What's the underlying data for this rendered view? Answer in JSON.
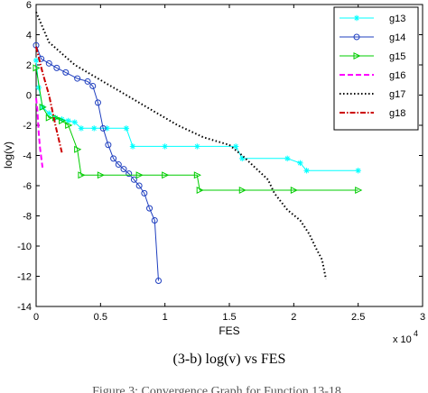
{
  "chart_data": {
    "type": "line",
    "xlabel": "FES",
    "ylabel": "log(v)",
    "xlim": [
      0,
      3
    ],
    "ylim": [
      -14,
      6
    ],
    "x_multiplier": "x 10",
    "x_exponent": "4",
    "xticks": [
      "0",
      "0.5",
      "1",
      "1.5",
      "2",
      "2.5",
      "3"
    ],
    "yticks": [
      "6",
      "4",
      "2",
      "0",
      "-2",
      "-4",
      "-6",
      "-8",
      "-10",
      "-12",
      "-14"
    ],
    "legend_position": "top-right",
    "series": [
      {
        "name": "g13",
        "color": "#00ffff",
        "style": "solid",
        "marker": "star",
        "x": [
          0,
          0.02,
          0.05,
          0.1,
          0.15,
          0.2,
          0.25,
          0.3,
          0.35,
          0.45,
          0.55,
          0.7,
          0.75,
          1.0,
          1.25,
          1.55,
          1.6,
          1.95,
          2.05,
          2.1,
          2.5
        ],
        "y": [
          2.3,
          0.5,
          -0.8,
          -1.2,
          -1.5,
          -1.6,
          -1.7,
          -1.8,
          -2.2,
          -2.2,
          -2.2,
          -2.2,
          -3.4,
          -3.4,
          -3.4,
          -3.4,
          -4.2,
          -4.2,
          -4.5,
          -5.0,
          -5.0
        ]
      },
      {
        "name": "g14",
        "color": "#1f3fbf",
        "style": "solid",
        "marker": "circle",
        "x": [
          0,
          0.04,
          0.1,
          0.16,
          0.23,
          0.32,
          0.4,
          0.44,
          0.48,
          0.52,
          0.56,
          0.6,
          0.64,
          0.68,
          0.72,
          0.76,
          0.8,
          0.84,
          0.88,
          0.92,
          0.95
        ],
        "y": [
          3.3,
          2.4,
          2.1,
          1.8,
          1.5,
          1.1,
          0.9,
          0.6,
          -0.5,
          -2.2,
          -3.3,
          -4.2,
          -4.6,
          -4.9,
          -5.2,
          -5.6,
          -6.0,
          -6.5,
          -7.5,
          -8.3,
          -12.3
        ]
      },
      {
        "name": "g15",
        "color": "#00cc00",
        "style": "solid",
        "marker": "triangle-right",
        "x": [
          0,
          0.05,
          0.1,
          0.15,
          0.2,
          0.25,
          0.32,
          0.35,
          0.5,
          0.8,
          1.0,
          1.25,
          1.27,
          1.6,
          2.0,
          2.5
        ],
        "y": [
          1.8,
          -0.8,
          -1.5,
          -1.5,
          -1.7,
          -2.0,
          -3.6,
          -5.3,
          -5.3,
          -5.3,
          -5.3,
          -5.3,
          -6.3,
          -6.3,
          -6.3,
          -6.3
        ]
      },
      {
        "name": "g16",
        "color": "#ff00ff",
        "style": "dashed",
        "marker": "none",
        "x": [
          0,
          0.01,
          0.02,
          0.03,
          0.05
        ],
        "y": [
          -0.2,
          -1.0,
          -2.5,
          -3.5,
          -4.8
        ]
      },
      {
        "name": "g17",
        "color": "#000000",
        "style": "dotted",
        "marker": "none",
        "x": [
          0,
          0.1,
          0.3,
          0.5,
          0.7,
          0.9,
          1.1,
          1.3,
          1.5,
          1.6,
          1.7,
          1.8,
          1.85,
          1.95,
          2.05,
          2.12,
          2.17,
          2.22,
          2.25
        ],
        "y": [
          5.5,
          3.5,
          2.0,
          1.0,
          0.0,
          -1.0,
          -2.0,
          -2.8,
          -3.3,
          -4.0,
          -4.8,
          -5.6,
          -6.5,
          -7.6,
          -8.3,
          -9.2,
          -10.1,
          -10.9,
          -12.2
        ]
      },
      {
        "name": "g18",
        "color": "#cc0000",
        "style": "dashdot",
        "marker": "none",
        "x": [
          0,
          0.05,
          0.1,
          0.15,
          0.2
        ],
        "y": [
          3.2,
          1.5,
          0.0,
          -2.0,
          -3.8
        ]
      }
    ]
  },
  "caption": "(3-b) log(v) vs FES",
  "caption_cut": "Figure 3: Convergence Graph for Function 13-18"
}
